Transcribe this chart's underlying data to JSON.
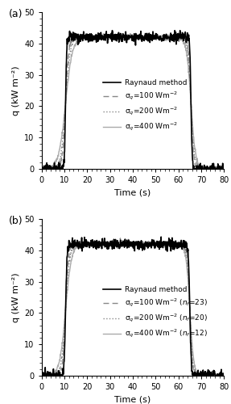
{
  "xlim": [
    0,
    80
  ],
  "ylim": [
    0,
    50
  ],
  "xticks": [
    0,
    10,
    20,
    30,
    40,
    50,
    60,
    70,
    80
  ],
  "yticks": [
    0,
    10,
    20,
    30,
    40,
    50
  ],
  "xlabel": "Time (s)",
  "ylabel": "q (kW m⁻²)",
  "heat_on": 10.5,
  "heat_off": 65.5,
  "heat_level": 42.0,
  "noise_amp_raynaud": 0.8,
  "noise_amp_sigma100": 0.5,
  "noise_amp_sigma200": 0.4,
  "noise_amp_sigma400": 0.3,
  "rise_sharpness_raynaud": 0.6,
  "rise_sharpness_sigma100": 1.2,
  "rise_sharpness_sigma200": 1.5,
  "rise_sharpness_sigma400": 1.8,
  "fall_sharpness_raynaud": 0.5,
  "fall_sharpness_sigma100": 0.9,
  "fall_sharpness_sigma200": 1.1,
  "fall_sharpness_sigma400": 1.3,
  "color_raynaud": "#000000",
  "color_sigma100": "#888888",
  "color_sigma200": "#888888",
  "color_sigma400": "#aaaaaa",
  "lw_raynaud": 1.2,
  "lw_sigma100": 1.0,
  "lw_sigma200": 1.0,
  "lw_sigma400": 1.0,
  "legend_a": [
    "Raynaud method",
    "σ$_q$=100 Wm$^{-2}$",
    "σ$_q$=200 Wm$^{-2}$",
    "σ$_q$=400 Wm$^{-2}$"
  ],
  "legend_b": [
    "Raynaud method",
    "σ$_q$=100 Wm$^{-2}$ ($n_f$=23)",
    "σ$_q$=200 Wm$^{-2}$ ($n_f$=20)",
    "σ$_q$=400 Wm$^{-2}$ ($n_f$=12)"
  ],
  "label_a": "(a)",
  "label_b": "(b)"
}
